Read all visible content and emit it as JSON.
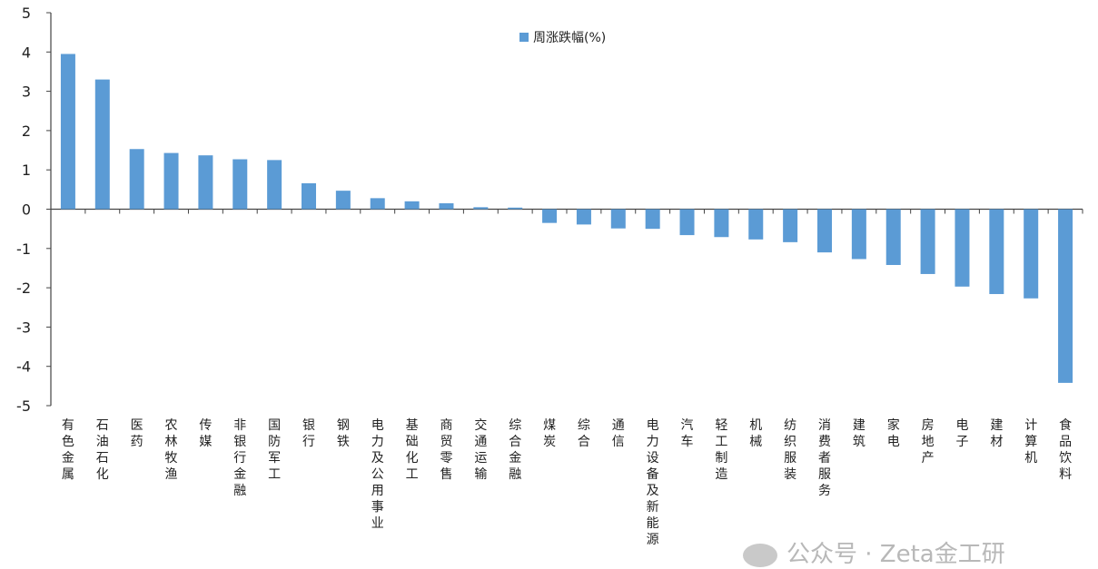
{
  "chart_data": {
    "type": "bar",
    "title": "",
    "xlabel": "",
    "ylabel": "",
    "legend": {
      "position": "top-center",
      "entries": [
        "周涨跌幅(%)"
      ]
    },
    "series": [
      {
        "name": "周涨跌幅(%)",
        "color": "#5b9bd5",
        "values": [
          3.95,
          3.3,
          1.53,
          1.43,
          1.37,
          1.27,
          1.25,
          0.66,
          0.47,
          0.28,
          0.2,
          0.15,
          0.05,
          0.04,
          -0.35,
          -0.39,
          -0.49,
          -0.5,
          -0.66,
          -0.71,
          -0.77,
          -0.84,
          -1.1,
          -1.27,
          -1.42,
          -1.65,
          -1.97,
          -2.16,
          -2.27,
          -4.42
        ]
      }
    ],
    "categories": [
      "有色金属",
      "石油石化",
      "医药",
      "农林牧渔",
      "传媒",
      "非银行金融",
      "国防军工",
      "银行",
      "钢铁",
      "电力及公用事业",
      "基础化工",
      "商贸零售",
      "交通运输",
      "综合金融",
      "煤炭",
      "综合",
      "通信",
      "电力设备及新能源",
      "汽车",
      "轻工制造",
      "机械",
      "纺织服装",
      "消费者服务",
      "建筑",
      "家电",
      "房地产",
      "电子",
      "建材",
      "计算机",
      "食品饮料"
    ],
    "ylim": [
      -5,
      5
    ],
    "yticks": [
      5,
      4,
      3,
      2,
      1,
      0,
      -1,
      -2,
      -3,
      -4,
      -5
    ],
    "grid": false
  },
  "watermark": {
    "text": "公众号 · Zeta金工研",
    "icon": "wechat-icon"
  }
}
